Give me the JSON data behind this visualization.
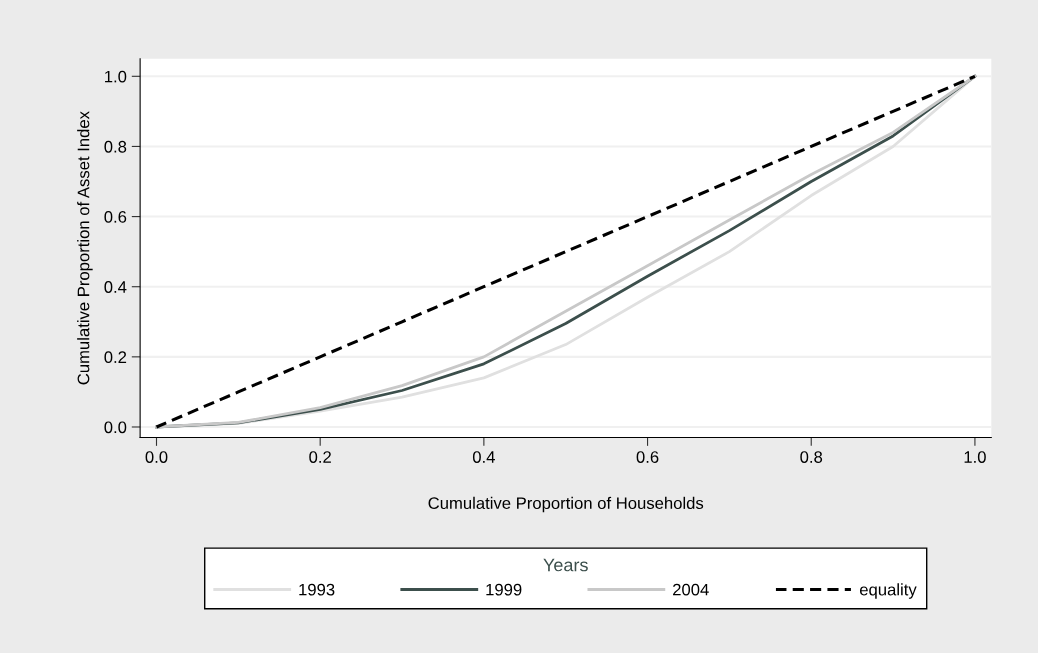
{
  "chart_data": {
    "type": "line",
    "xlabel": "Cumulative Proportion of Households",
    "ylabel": "Cumulative Proportion of Asset Index",
    "x": [
      0,
      0.1,
      0.2,
      0.3,
      0.4,
      0.5,
      0.6,
      0.7,
      0.8,
      0.9,
      1.0
    ],
    "series": [
      {
        "name": "1993",
        "color": "#e0e0e0",
        "values": [
          0,
          0.01,
          0.045,
          0.085,
          0.14,
          0.235,
          0.37,
          0.5,
          0.66,
          0.8,
          1.0
        ]
      },
      {
        "name": "1999",
        "color": "#3c4f4c",
        "values": [
          0,
          0.012,
          0.05,
          0.104,
          0.18,
          0.295,
          0.43,
          0.56,
          0.7,
          0.83,
          1.0
        ]
      },
      {
        "name": "2004",
        "color": "#c8c8c8",
        "values": [
          0,
          0.013,
          0.055,
          0.118,
          0.2,
          0.33,
          0.46,
          0.59,
          0.72,
          0.84,
          1.0
        ]
      },
      {
        "name": "equality",
        "color": "#000000",
        "line_style": "dashed",
        "values": [
          0,
          0.1,
          0.2,
          0.3,
          0.4,
          0.5,
          0.6,
          0.7,
          0.8,
          0.9,
          1.0
        ]
      }
    ],
    "xlim": [
      -0.02,
      1.02
    ],
    "ylim": [
      -0.03,
      1.05
    ],
    "xticks": [
      {
        "value": 0,
        "label": "0.0"
      },
      {
        "value": 0.2,
        "label": "0.2"
      },
      {
        "value": 0.4,
        "label": "0.4"
      },
      {
        "value": 0.6,
        "label": "0.6"
      },
      {
        "value": 0.8,
        "label": "0.8"
      },
      {
        "value": 1.0,
        "label": "1.0"
      }
    ],
    "yticks": [
      {
        "value": 0,
        "label": "0.0"
      },
      {
        "value": 0.2,
        "label": "0.2"
      },
      {
        "value": 0.4,
        "label": "0.4"
      },
      {
        "value": 0.6,
        "label": "0.6"
      },
      {
        "value": 0.8,
        "label": "0.8"
      },
      {
        "value": 1.0,
        "label": "1.0"
      }
    ],
    "grid": "y",
    "legend": "bottom",
    "legend_title": "Years"
  }
}
